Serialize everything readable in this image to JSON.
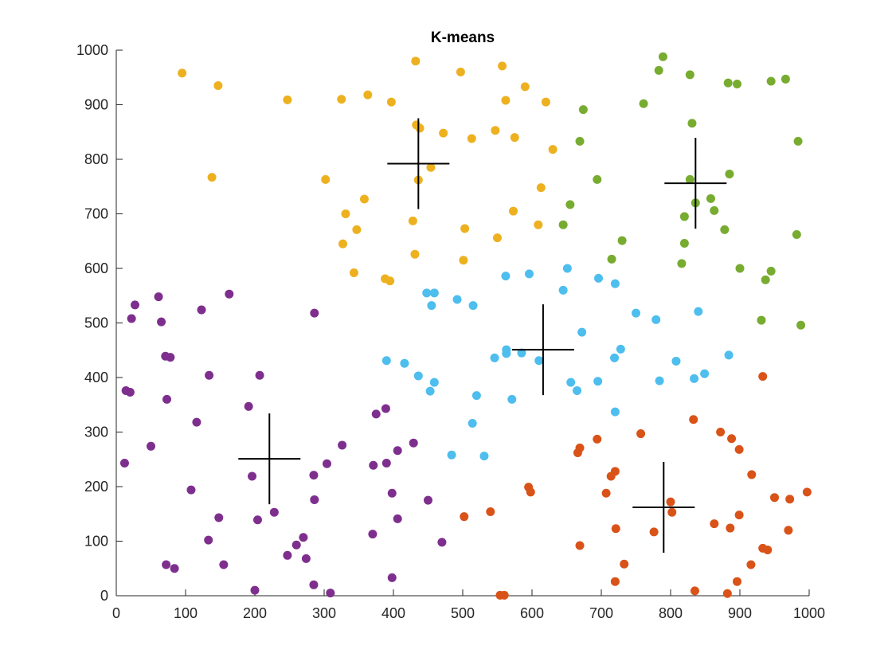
{
  "chart_data": {
    "type": "scatter",
    "title": "K-means",
    "xlabel": "",
    "ylabel": "",
    "xlim": [
      0,
      1000
    ],
    "ylim": [
      0,
      1000
    ],
    "xticks": [
      "0",
      "100",
      "200",
      "300",
      "400",
      "500",
      "600",
      "700",
      "800",
      "900",
      "1000"
    ],
    "yticks": [
      "0",
      "100",
      "200",
      "300",
      "400",
      "500",
      "600",
      "700",
      "800",
      "900",
      "1000"
    ],
    "grid": false,
    "series": [
      {
        "color": "#EDB120",
        "points": [
          [
            95,
            958
          ],
          [
            147,
            935
          ],
          [
            247,
            909
          ],
          [
            325,
            910
          ],
          [
            363,
            918
          ],
          [
            397,
            905
          ],
          [
            432,
            980
          ],
          [
            497,
            960
          ],
          [
            557,
            971
          ],
          [
            562,
            908
          ],
          [
            590,
            933
          ],
          [
            620,
            905
          ],
          [
            433,
            863
          ],
          [
            438,
            857
          ],
          [
            472,
            848
          ],
          [
            513,
            838
          ],
          [
            547,
            853
          ],
          [
            575,
            840
          ],
          [
            630,
            818
          ],
          [
            138,
            767
          ],
          [
            302,
            763
          ],
          [
            436,
            762
          ],
          [
            454,
            785
          ],
          [
            358,
            727
          ],
          [
            613,
            748
          ],
          [
            331,
            700
          ],
          [
            347,
            671
          ],
          [
            428,
            687
          ],
          [
            503,
            673
          ],
          [
            573,
            705
          ],
          [
            609,
            680
          ],
          [
            327,
            645
          ],
          [
            550,
            656
          ],
          [
            343,
            592
          ],
          [
            431,
            626
          ],
          [
            501,
            615
          ],
          [
            388,
            581
          ],
          [
            395,
            577
          ]
        ]
      },
      {
        "color": "#77AC30",
        "points": [
          [
            789,
            988
          ],
          [
            783,
            963
          ],
          [
            828,
            955
          ],
          [
            883,
            940
          ],
          [
            896,
            938
          ],
          [
            945,
            943
          ],
          [
            966,
            947
          ],
          [
            761,
            902
          ],
          [
            674,
            891
          ],
          [
            831,
            866
          ],
          [
            669,
            833
          ],
          [
            984,
            833
          ],
          [
            885,
            773
          ],
          [
            694,
            763
          ],
          [
            828,
            763
          ],
          [
            836,
            720
          ],
          [
            858,
            728
          ],
          [
            655,
            717
          ],
          [
            820,
            695
          ],
          [
            863,
            706
          ],
          [
            645,
            680
          ],
          [
            878,
            671
          ],
          [
            982,
            662
          ],
          [
            730,
            651
          ],
          [
            820,
            646
          ],
          [
            715,
            617
          ],
          [
            816,
            609
          ],
          [
            900,
            600
          ],
          [
            945,
            595
          ],
          [
            937,
            579
          ],
          [
            931,
            505
          ],
          [
            988,
            496
          ]
        ]
      },
      {
        "color": "#4DBEEE",
        "points": [
          [
            651,
            600
          ],
          [
            596,
            590
          ],
          [
            562,
            586
          ],
          [
            696,
            582
          ],
          [
            720,
            572
          ],
          [
            448,
            555
          ],
          [
            459,
            555
          ],
          [
            645,
            560
          ],
          [
            492,
            543
          ],
          [
            455,
            532
          ],
          [
            515,
            532
          ],
          [
            750,
            518
          ],
          [
            840,
            521
          ],
          [
            779,
            506
          ],
          [
            672,
            483
          ],
          [
            563,
            451
          ],
          [
            585,
            445
          ],
          [
            563,
            444
          ],
          [
            728,
            452
          ],
          [
            546,
            436
          ],
          [
            719,
            436
          ],
          [
            884,
            441
          ],
          [
            390,
            431
          ],
          [
            416,
            426
          ],
          [
            610,
            431
          ],
          [
            808,
            430
          ],
          [
            849,
            407
          ],
          [
            834,
            398
          ],
          [
            436,
            403
          ],
          [
            784,
            394
          ],
          [
            459,
            391
          ],
          [
            656,
            391
          ],
          [
            695,
            393
          ],
          [
            453,
            375
          ],
          [
            665,
            376
          ],
          [
            520,
            367
          ],
          [
            571,
            360
          ],
          [
            720,
            337
          ],
          [
            514,
            316
          ],
          [
            484,
            258
          ],
          [
            531,
            256
          ]
        ]
      },
      {
        "color": "#7E2F8E",
        "points": [
          [
            27,
            533
          ],
          [
            61,
            548
          ],
          [
            163,
            553
          ],
          [
            22,
            508
          ],
          [
            65,
            502
          ],
          [
            123,
            524
          ],
          [
            286,
            518
          ],
          [
            71,
            439
          ],
          [
            78,
            437
          ],
          [
            134,
            404
          ],
          [
            207,
            404
          ],
          [
            14,
            376
          ],
          [
            20,
            373
          ],
          [
            73,
            360
          ],
          [
            191,
            347
          ],
          [
            116,
            318
          ],
          [
            375,
            333
          ],
          [
            389,
            343
          ],
          [
            50,
            274
          ],
          [
            326,
            276
          ],
          [
            429,
            280
          ],
          [
            406,
            266
          ],
          [
            196,
            219
          ],
          [
            304,
            242
          ],
          [
            371,
            239
          ],
          [
            390,
            243
          ],
          [
            285,
            221
          ],
          [
            108,
            194
          ],
          [
            398,
            188
          ],
          [
            286,
            176
          ],
          [
            450,
            175
          ],
          [
            228,
            153
          ],
          [
            148,
            143
          ],
          [
            204,
            139
          ],
          [
            406,
            141
          ],
          [
            270,
            107
          ],
          [
            133,
            102
          ],
          [
            370,
            113
          ],
          [
            260,
            93
          ],
          [
            470,
            98
          ],
          [
            247,
            74
          ],
          [
            274,
            68
          ],
          [
            72,
            57
          ],
          [
            155,
            57
          ],
          [
            84,
            50
          ],
          [
            398,
            33
          ],
          [
            285,
            20
          ],
          [
            200,
            10
          ],
          [
            309,
            5
          ],
          [
            12,
            243
          ]
        ]
      },
      {
        "color": "#D95319",
        "points": [
          [
            933,
            402
          ],
          [
            833,
            323
          ],
          [
            757,
            297
          ],
          [
            872,
            300
          ],
          [
            888,
            288
          ],
          [
            694,
            287
          ],
          [
            899,
            268
          ],
          [
            669,
            271
          ],
          [
            666,
            262
          ],
          [
            720,
            228
          ],
          [
            714,
            219
          ],
          [
            917,
            222
          ],
          [
            595,
            199
          ],
          [
            598,
            190
          ],
          [
            707,
            188
          ],
          [
            950,
            180
          ],
          [
            972,
            177
          ],
          [
            997,
            190
          ],
          [
            800,
            172
          ],
          [
            899,
            148
          ],
          [
            802,
            153
          ],
          [
            540,
            154
          ],
          [
            502,
            145
          ],
          [
            863,
            132
          ],
          [
            721,
            123
          ],
          [
            776,
            117
          ],
          [
            886,
            124
          ],
          [
            970,
            120
          ],
          [
            669,
            92
          ],
          [
            933,
            87
          ],
          [
            940,
            84
          ],
          [
            733,
            58
          ],
          [
            916,
            57
          ],
          [
            720,
            26
          ],
          [
            896,
            26
          ],
          [
            835,
            9
          ],
          [
            882,
            4
          ],
          [
            554,
            1
          ],
          [
            560,
            1
          ]
        ]
      }
    ],
    "centroids": [
      [
        436,
        792
      ],
      [
        836,
        756
      ],
      [
        616,
        451
      ],
      [
        221,
        251
      ],
      [
        790,
        162
      ]
    ]
  }
}
